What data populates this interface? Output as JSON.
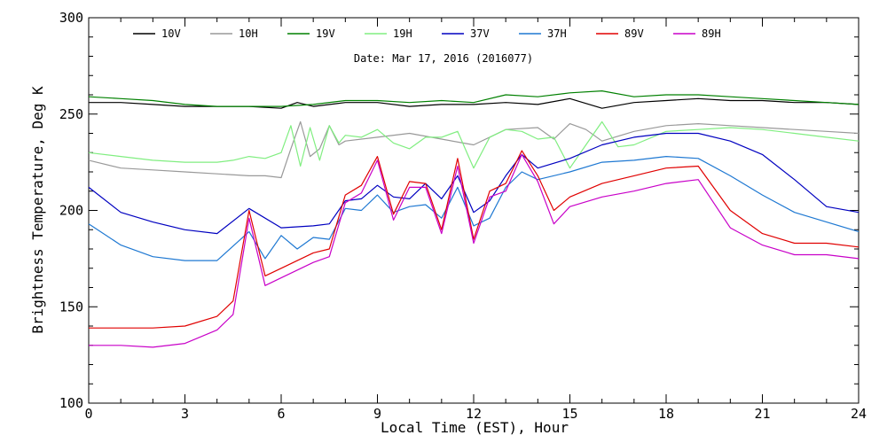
{
  "chart_data": {
    "type": "line",
    "title": "",
    "subtitle": "Date: Mar 17, 2016 (2016077)",
    "xlabel": "Local Time (EST), Hour",
    "ylabel": "Brightness Temperature, Deg K",
    "xlim": [
      0,
      24
    ],
    "ylim": [
      100,
      300
    ],
    "xticks": [
      0,
      3,
      6,
      9,
      12,
      15,
      18,
      21,
      24
    ],
    "yticks": [
      100,
      150,
      200,
      250,
      300
    ],
    "grid": false,
    "legend_position": "top",
    "series": [
      {
        "name": "10V",
        "color": "#000000",
        "x": [
          0,
          1,
          2,
          3,
          4,
          5,
          6,
          6.5,
          7,
          8,
          9,
          10,
          11,
          12,
          13,
          14,
          15,
          16,
          17,
          18,
          19,
          20,
          21,
          22,
          23,
          24
        ],
        "y": [
          256,
          256,
          255,
          254,
          254,
          254,
          253,
          256,
          254,
          256,
          256,
          254,
          255,
          255,
          256,
          255,
          258,
          253,
          256,
          257,
          258,
          257,
          257,
          256,
          256,
          255
        ]
      },
      {
        "name": "10H",
        "color": "#999999",
        "x": [
          0,
          1,
          2,
          3,
          4,
          5,
          5.5,
          6,
          6.3,
          6.6,
          6.9,
          7.2,
          7.5,
          7.8,
          8,
          9,
          10,
          11,
          12,
          13,
          14,
          14.5,
          15,
          15.5,
          16,
          17,
          18,
          19,
          20,
          21,
          22,
          23,
          24
        ],
        "y": [
          226,
          222,
          221,
          220,
          219,
          218,
          218,
          217,
          232,
          246,
          228,
          232,
          244,
          234,
          236,
          238,
          240,
          237,
          234,
          242,
          243,
          237,
          245,
          242,
          236,
          241,
          244,
          245,
          244,
          243,
          242,
          241,
          240
        ]
      },
      {
        "name": "19V",
        "color": "#008000",
        "x": [
          0,
          1,
          2,
          3,
          4,
          5,
          6,
          7,
          8,
          9,
          10,
          11,
          12,
          13,
          14,
          15,
          16,
          17,
          18,
          19,
          20,
          21,
          22,
          23,
          24
        ],
        "y": [
          259,
          258,
          257,
          255,
          254,
          254,
          254,
          255,
          257,
          257,
          256,
          257,
          256,
          260,
          259,
          261,
          262,
          259,
          260,
          260,
          259,
          258,
          257,
          256,
          255
        ]
      },
      {
        "name": "19H",
        "color": "#80ee80",
        "x": [
          0,
          1,
          2,
          3,
          4,
          4.5,
          5,
          5.5,
          6,
          6.3,
          6.6,
          6.9,
          7.2,
          7.5,
          7.8,
          8,
          8.5,
          9,
          9.5,
          10,
          10.5,
          11,
          11.5,
          12,
          12.5,
          13,
          13.5,
          14,
          14.5,
          15,
          15.5,
          16,
          16.5,
          17,
          18,
          19,
          20,
          21,
          22,
          23,
          24
        ],
        "y": [
          230,
          228,
          226,
          225,
          225,
          226,
          228,
          227,
          230,
          244,
          223,
          243,
          226,
          244,
          235,
          239,
          238,
          242,
          235,
          232,
          238,
          238,
          241,
          222,
          238,
          242,
          241,
          237,
          238,
          222,
          234,
          246,
          233,
          234,
          241,
          242,
          243,
          242,
          240,
          238,
          236
        ]
      },
      {
        "name": "37V",
        "color": "#0000c0",
        "x": [
          0,
          1,
          2,
          3,
          4,
          5,
          6,
          7,
          7.5,
          8,
          8.5,
          9,
          9.5,
          10,
          10.5,
          11,
          11.5,
          12,
          12.5,
          13,
          13.5,
          14,
          15,
          16,
          17,
          18,
          19,
          20,
          21,
          22,
          23,
          24
        ],
        "y": [
          212,
          199,
          194,
          190,
          188,
          201,
          191,
          192,
          193,
          205,
          206,
          213,
          207,
          206,
          214,
          206,
          218,
          199,
          205,
          218,
          229,
          222,
          227,
          234,
          238,
          240,
          240,
          236,
          229,
          216,
          202,
          199
        ]
      },
      {
        "name": "37H",
        "color": "#1e78d2",
        "x": [
          0,
          1,
          2,
          3,
          4,
          5,
          5.5,
          6,
          6.5,
          7,
          7.5,
          8,
          8.5,
          9,
          9.5,
          10,
          10.5,
          11,
          11.5,
          12,
          12.5,
          13,
          13.5,
          14,
          15,
          16,
          17,
          18,
          19,
          20,
          21,
          22,
          23,
          24
        ],
        "y": [
          193,
          182,
          176,
          174,
          174,
          189,
          175,
          187,
          180,
          186,
          185,
          201,
          200,
          208,
          199,
          202,
          203,
          196,
          212,
          192,
          196,
          212,
          220,
          216,
          220,
          225,
          226,
          228,
          227,
          218,
          208,
          199,
          194,
          189
        ]
      },
      {
        "name": "89V",
        "color": "#e00000",
        "x": [
          0,
          1,
          2,
          3,
          4,
          4.5,
          5,
          5.5,
          6,
          7,
          7.5,
          8,
          8.5,
          9,
          9.5,
          10,
          10.5,
          11,
          11.5,
          12,
          12.5,
          13,
          13.5,
          14,
          14.5,
          15,
          16,
          17,
          18,
          19,
          20,
          21,
          22,
          23,
          24
        ],
        "y": [
          139,
          139,
          139,
          140,
          145,
          153,
          200,
          166,
          170,
          178,
          180,
          208,
          213,
          228,
          198,
          215,
          214,
          190,
          227,
          185,
          210,
          214,
          231,
          218,
          200,
          207,
          214,
          218,
          222,
          223,
          200,
          188,
          183,
          183,
          181
        ]
      },
      {
        "name": "89H",
        "color": "#c800c8",
        "x": [
          0,
          1,
          2,
          3,
          4,
          4.5,
          5,
          5.5,
          6,
          7,
          7.5,
          8,
          8.5,
          9,
          9.5,
          10,
          10.5,
          11,
          11.5,
          12,
          12.5,
          13,
          13.5,
          14,
          14.5,
          15,
          16,
          17,
          18,
          19,
          20,
          21,
          22,
          23,
          24
        ],
        "y": [
          130,
          130,
          129,
          131,
          138,
          146,
          196,
          161,
          165,
          173,
          176,
          204,
          209,
          226,
          195,
          212,
          212,
          188,
          223,
          183,
          207,
          210,
          229,
          215,
          193,
          202,
          207,
          210,
          214,
          216,
          191,
          182,
          177,
          177,
          175
        ]
      }
    ]
  }
}
